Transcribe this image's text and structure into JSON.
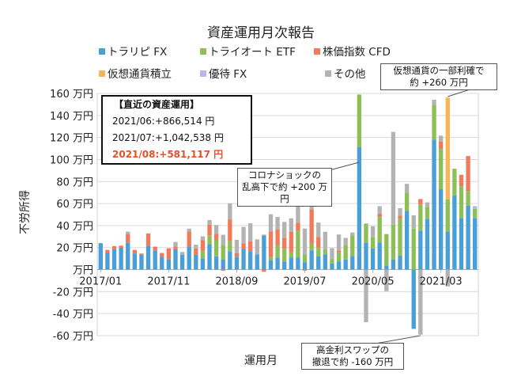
{
  "chart_data": {
    "type": "bar",
    "stacked": true,
    "title": "資産運用月次報告",
    "xlabel": "運用月",
    "ylabel": "不労所得",
    "unit": "万円",
    "ylim": [
      -60,
      160
    ],
    "yticks": [
      160,
      140,
      120,
      100,
      80,
      60,
      40,
      20,
      0,
      -20,
      -40,
      -60
    ],
    "ytick_labels": [
      "160 万円",
      "140 万円",
      "120 万円",
      "100 万円",
      "80 万円",
      "60 万円",
      "40 万円",
      "20 万円",
      "万円",
      "-20 万円",
      "-40 万円",
      "-60 万円"
    ],
    "xtick_labels": [
      "2017/01",
      "2017/11",
      "2018/09",
      "2019/07",
      "2020/05",
      "2021/03"
    ],
    "first_month": "2017/01",
    "last_month": "2021/08",
    "grid": true,
    "legend_position": "top",
    "series": [
      {
        "name": "トラリピ FX",
        "color": "#4a9fd8",
        "values": [
          24,
          15.5,
          18.4,
          19.9,
          24.6,
          14.6,
          13.6,
          21.8,
          17.5,
          11.5,
          9.3,
          18.4,
          13.6,
          21,
          13.6,
          10.3,
          23,
          12,
          9.3,
          16.7,
          11.7,
          18.7,
          16.7,
          13.9,
          31.1,
          8.6,
          11,
          7.4,
          10.8,
          10.8,
          6.7,
          17.5,
          12.2,
          13.9,
          5.5,
          7.2,
          9.1,
          12.2,
          111.2,
          24.6,
          19.1,
          24.6,
          3.8,
          9.1,
          12.7,
          53.3,
          -53.8,
          35.4,
          46.2,
          117.9,
          73,
          34.7,
          67.2,
          46.9,
          58.1,
          46.9
        ]
      },
      {
        "name": "トライオート ETF",
        "color": "#8dbf57",
        "values": [
          0,
          0,
          0,
          0,
          0,
          0,
          0,
          0,
          0,
          0,
          0,
          0,
          0,
          0,
          0,
          6.7,
          8.1,
          14.6,
          13.2,
          9.3,
          0,
          0,
          0,
          0,
          0,
          2.9,
          11,
          11.5,
          4.8,
          24.6,
          7.2,
          6,
          7.7,
          4.1,
          4.3,
          8.4,
          13.2,
          18.9,
          47.8,
          17.2,
          10.3,
          23.4,
          28.5,
          31.8,
          33.5,
          16.7,
          37.3,
          23.7,
          10.8,
          31.6,
          36.6,
          29.2,
          24.4,
          28.7,
          13.2,
          8.4
        ]
      },
      {
        "name": "株価指数 CFD",
        "color": "#f07a5a",
        "values": [
          0,
          2.4,
          2.9,
          1.9,
          7.7,
          3.3,
          1,
          11,
          3.3,
          3.6,
          10,
          2.4,
          0,
          13.6,
          5.7,
          9.6,
          9.6,
          6,
          -1,
          19.6,
          3.3,
          5.3,
          9.1,
          0,
          -2,
          23.2,
          14.6,
          10,
          18.6,
          7.2,
          -1,
          31.1,
          9.6,
          0,
          0,
          1.9,
          0,
          0,
          0,
          0,
          0,
          2.9,
          0,
          0,
          2.9,
          0,
          0,
          5,
          0,
          0,
          6.7,
          0,
          0,
          10.5,
          31.8,
          0
        ]
      },
      {
        "name": "仮想通貨積立",
        "color": "#f8b455",
        "values": [
          0,
          0,
          0,
          0,
          0,
          0,
          0,
          0,
          0,
          0,
          0,
          0,
          0,
          0,
          0,
          0,
          0,
          0,
          0,
          0,
          0,
          0,
          0,
          0,
          0,
          0,
          0,
          0,
          0,
          0,
          0,
          0,
          0,
          0,
          0,
          0,
          0,
          0,
          0,
          0,
          0,
          0,
          0,
          0,
          0,
          0,
          0,
          0,
          0,
          0,
          0,
          92.3,
          0,
          0,
          0,
          0
        ]
      },
      {
        "name": "優待 FX",
        "color": "#b8b8f0",
        "values": [
          0,
          0,
          0,
          0,
          0,
          0,
          0,
          0,
          0,
          0,
          0,
          0,
          0,
          0,
          0,
          0,
          0,
          0,
          0,
          0,
          0,
          0,
          0,
          0,
          0,
          0,
          0,
          0,
          0,
          0,
          0,
          0,
          0,
          0,
          0,
          0,
          0,
          0,
          0,
          0,
          0,
          0,
          0,
          0,
          0,
          0,
          0,
          0,
          0,
          0,
          0,
          0,
          0,
          0,
          0,
          2.4
        ]
      },
      {
        "name": "その他",
        "color": "#b3b3b3",
        "values": [
          0,
          0,
          0,
          0,
          2.2,
          0,
          0,
          0,
          0,
          0,
          0,
          4.3,
          2.4,
          2.6,
          3.3,
          3.6,
          4.3,
          7.9,
          9.1,
          14.6,
          12,
          14.8,
          16.3,
          13.6,
          0.7,
          15.6,
          11.2,
          14.4,
          12.4,
          20.8,
          23.4,
          3.1,
          13.2,
          16.3,
          9.6,
          14.4,
          6.5,
          2.6,
          0,
          -47.8,
          10,
          6.7,
          -19.6,
          84.2,
          6.7,
          7.9,
          12,
          -59.1,
          4.1,
          4.8,
          5.3,
          -15.3,
          0,
          0,
          0,
          0
        ]
      }
    ],
    "annotations": [
      {
        "month": "2020/03",
        "line1": "コロナショックの",
        "line2": "乱高下で約 +200 万円"
      },
      {
        "month": "2021/04",
        "line1": "仮想通貨の一部利確で",
        "line2": "約 +260 万円"
      },
      {
        "month": "2020/12",
        "line1": "高金利スワップの",
        "line2": "撤退で約 -160 万円"
      }
    ]
  },
  "info_box": {
    "heading": "【直近の資産運用】",
    "lines": [
      "2021/06:+866,514 円",
      "2021/07:+1,042,538 円"
    ],
    "highlight": "2021/08:+581,117 円",
    "highlight_color": "#e8502a"
  }
}
